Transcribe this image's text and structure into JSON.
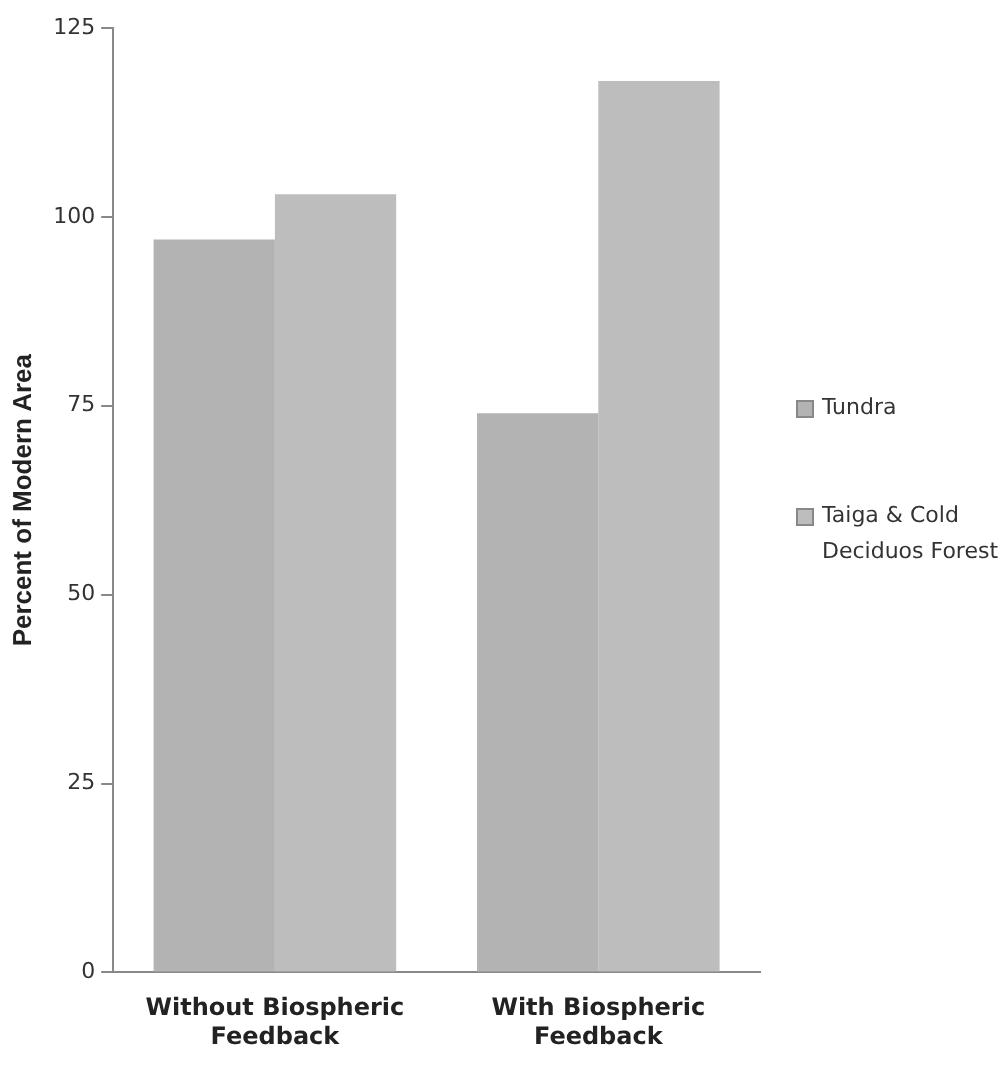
{
  "chart_data": {
    "type": "bar",
    "ylabel": "Percent of Modern Area",
    "categories": [
      "Without Biospheric Feedback",
      "With Biospheric Feedback"
    ],
    "series": [
      {
        "name": "Tundra",
        "color": "#b3b3b3",
        "values": [
          97,
          74
        ]
      },
      {
        "name": "Taiga & Cold Deciduos Forest",
        "color": "#bdbdbd",
        "values": [
          103,
          118
        ]
      }
    ],
    "ylim": [
      0,
      125
    ],
    "yticks": [
      0,
      25,
      50,
      75,
      100,
      125
    ],
    "grid": false,
    "legend": "right"
  }
}
